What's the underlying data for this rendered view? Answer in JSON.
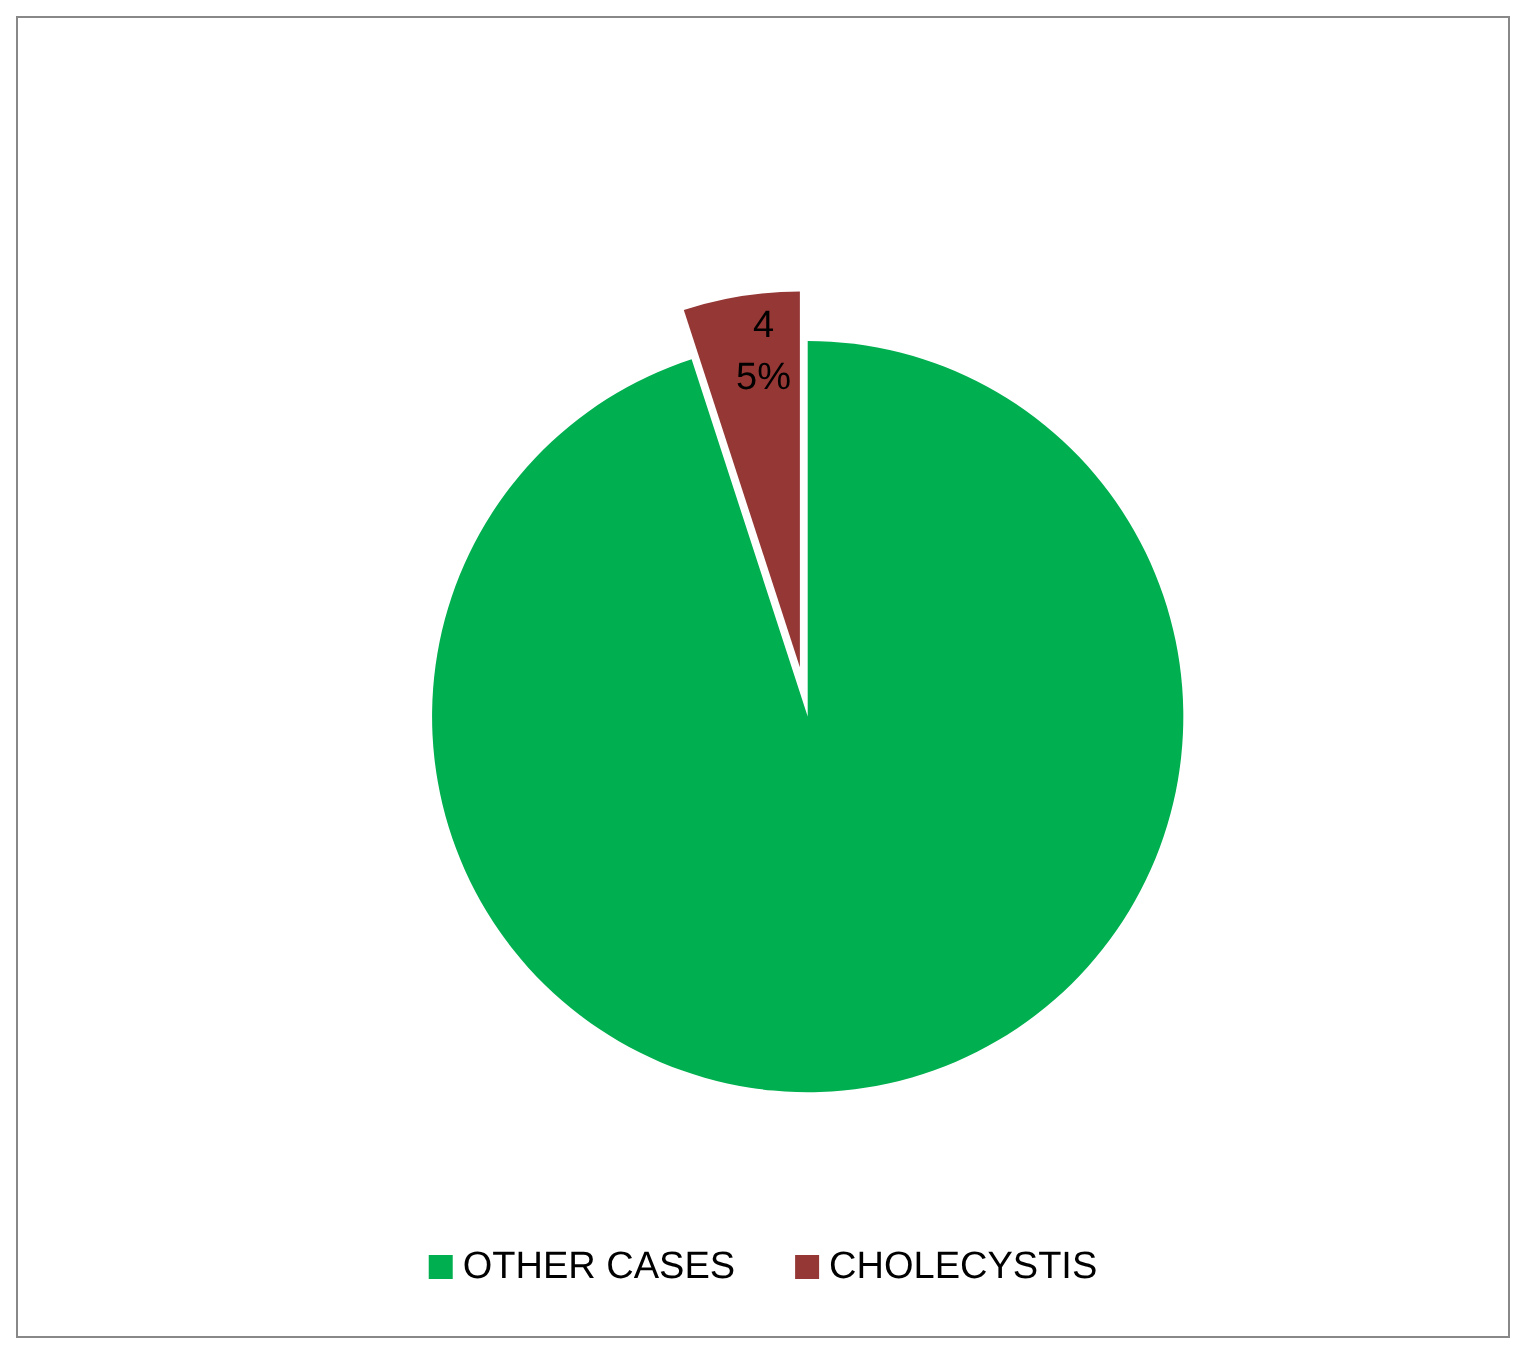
{
  "chart_data": {
    "type": "pie",
    "categories": [
      "OTHER CASES",
      "CHOLECYSTIS"
    ],
    "values": [
      76,
      4
    ],
    "colors": [
      "#00b050",
      "#953735"
    ],
    "value_labels": [
      null,
      "4\n5%"
    ],
    "legend": "bottom"
  }
}
